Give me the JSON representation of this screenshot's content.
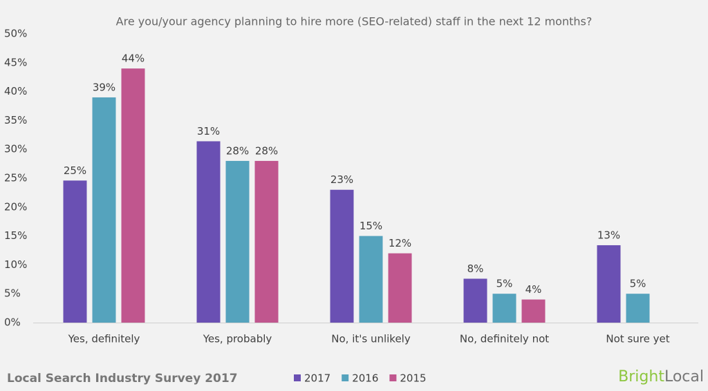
{
  "chart_data": {
    "type": "bar",
    "title": "Are you/your agency planning to hire more (SEO-related) staff in the next 12 months?",
    "categories": [
      "Yes, definitely",
      "Yes, probably",
      "No, it's unlikely",
      "No, definitely not",
      "Not sure yet"
    ],
    "series": [
      {
        "name": "2017",
        "color": "#6a50b3",
        "values": [
          24.6,
          31.4,
          23,
          7.6,
          13.4
        ],
        "value_labels": [
          "25%",
          "31%",
          "23%",
          "8%",
          "13%"
        ]
      },
      {
        "name": "2016",
        "color": "#55a3bd",
        "values": [
          39,
          28,
          15,
          5,
          5
        ],
        "value_labels": [
          "39%",
          "28%",
          "15%",
          "5%",
          "5%"
        ]
      },
      {
        "name": "2015",
        "color": "#c0568e",
        "values": [
          44,
          28,
          12,
          4,
          null
        ],
        "value_labels": [
          "44%",
          "28%",
          "12%",
          "4%",
          null
        ]
      }
    ],
    "ylim": [
      0,
      50
    ],
    "yticks": [
      {
        "value": 0,
        "label": "0%"
      },
      {
        "value": 5,
        "label": "5%"
      },
      {
        "value": 10,
        "label": "10%"
      },
      {
        "value": 15,
        "label": "15%"
      },
      {
        "value": 20,
        "label": "20%"
      },
      {
        "value": 25,
        "label": "25%"
      },
      {
        "value": 30,
        "label": "30%"
      },
      {
        "value": 35,
        "label": "35%"
      },
      {
        "value": 40,
        "label": "40%"
      },
      {
        "value": 45,
        "label": "45%"
      },
      {
        "value": 50,
        "label": "50%"
      }
    ],
    "grid": false
  },
  "footer": {
    "source": "Local Search Industry Survey 2017",
    "logo": [
      "Bright",
      "Local"
    ]
  }
}
